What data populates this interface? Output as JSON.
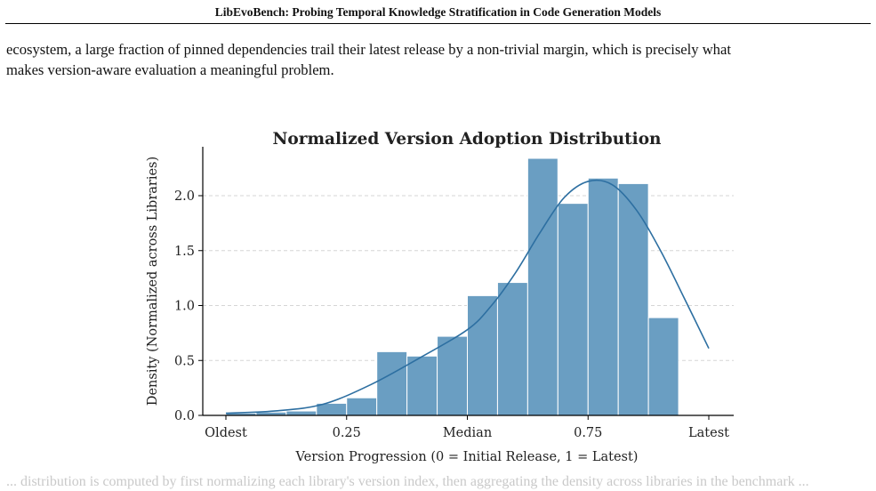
{
  "page": {
    "running_header": "LibEvoBench: Probing Temporal Knowledge Stratification in Code Generation Models",
    "body_lines": [
      "ecosystem, a large fraction of pinned dependencies trail their latest release by a non-trivial margin, which is precisely what",
      "makes version-aware evaluation a meaningful problem."
    ]
  },
  "chart_data": {
    "type": "bar",
    "title": "Normalized Version Adoption Distribution",
    "xlabel": "Version Progression (0 = Initial Release, 1 = Latest)",
    "ylabel": "Density (Normalized across Libraries)",
    "xlim": [
      0,
      1
    ],
    "ylim": [
      0,
      2.45
    ],
    "x_ticks": [
      {
        "value": 0,
        "label": "Oldest"
      },
      {
        "value": 0.25,
        "label": "0.25"
      },
      {
        "value": 0.5,
        "label": "Median"
      },
      {
        "value": 0.75,
        "label": "0.75"
      },
      {
        "value": 1,
        "label": "Latest"
      }
    ],
    "y_ticks": [
      {
        "value": 0,
        "label": "0.0"
      },
      {
        "value": 0.5,
        "label": "0.5"
      },
      {
        "value": 1.0,
        "label": "1.0"
      },
      {
        "value": 1.5,
        "label": "1.5"
      },
      {
        "value": 2.0,
        "label": "2.0"
      }
    ],
    "grid": "horizontal-dashed",
    "bin_edges": [
      0,
      0.0625,
      0.125,
      0.1875,
      0.25,
      0.3125,
      0.375,
      0.4375,
      0.5,
      0.5625,
      0.625,
      0.6875,
      0.75,
      0.8125,
      0.875,
      0.9375,
      1.0
    ],
    "values": [
      0.02,
      0.03,
      0.04,
      0.11,
      0.16,
      0.58,
      0.54,
      0.72,
      1.09,
      1.21,
      2.34,
      1.93,
      2.16,
      2.11,
      0.89,
      0.0
    ],
    "kde": {
      "x": [
        0,
        0.1,
        0.2,
        0.3,
        0.4,
        0.5,
        0.55,
        0.6,
        0.65,
        0.7,
        0.75,
        0.8,
        0.85,
        0.9,
        0.95,
        1.0
      ],
      "y": [
        0.02,
        0.04,
        0.1,
        0.28,
        0.52,
        0.78,
        1.0,
        1.3,
        1.66,
        1.98,
        2.13,
        2.1,
        1.87,
        1.5,
        1.06,
        0.61
      ]
    },
    "colors": {
      "bar": "#6a9ec2",
      "bar_edge": "#ffffff",
      "kde": "#2d6fa1",
      "grid": "#d6d6d6",
      "axis": "#000000"
    }
  },
  "footer": {
    "faded_line": "... distribution is computed by first normalizing each library's version index, then aggregating the density across libraries in the benchmark ..."
  }
}
